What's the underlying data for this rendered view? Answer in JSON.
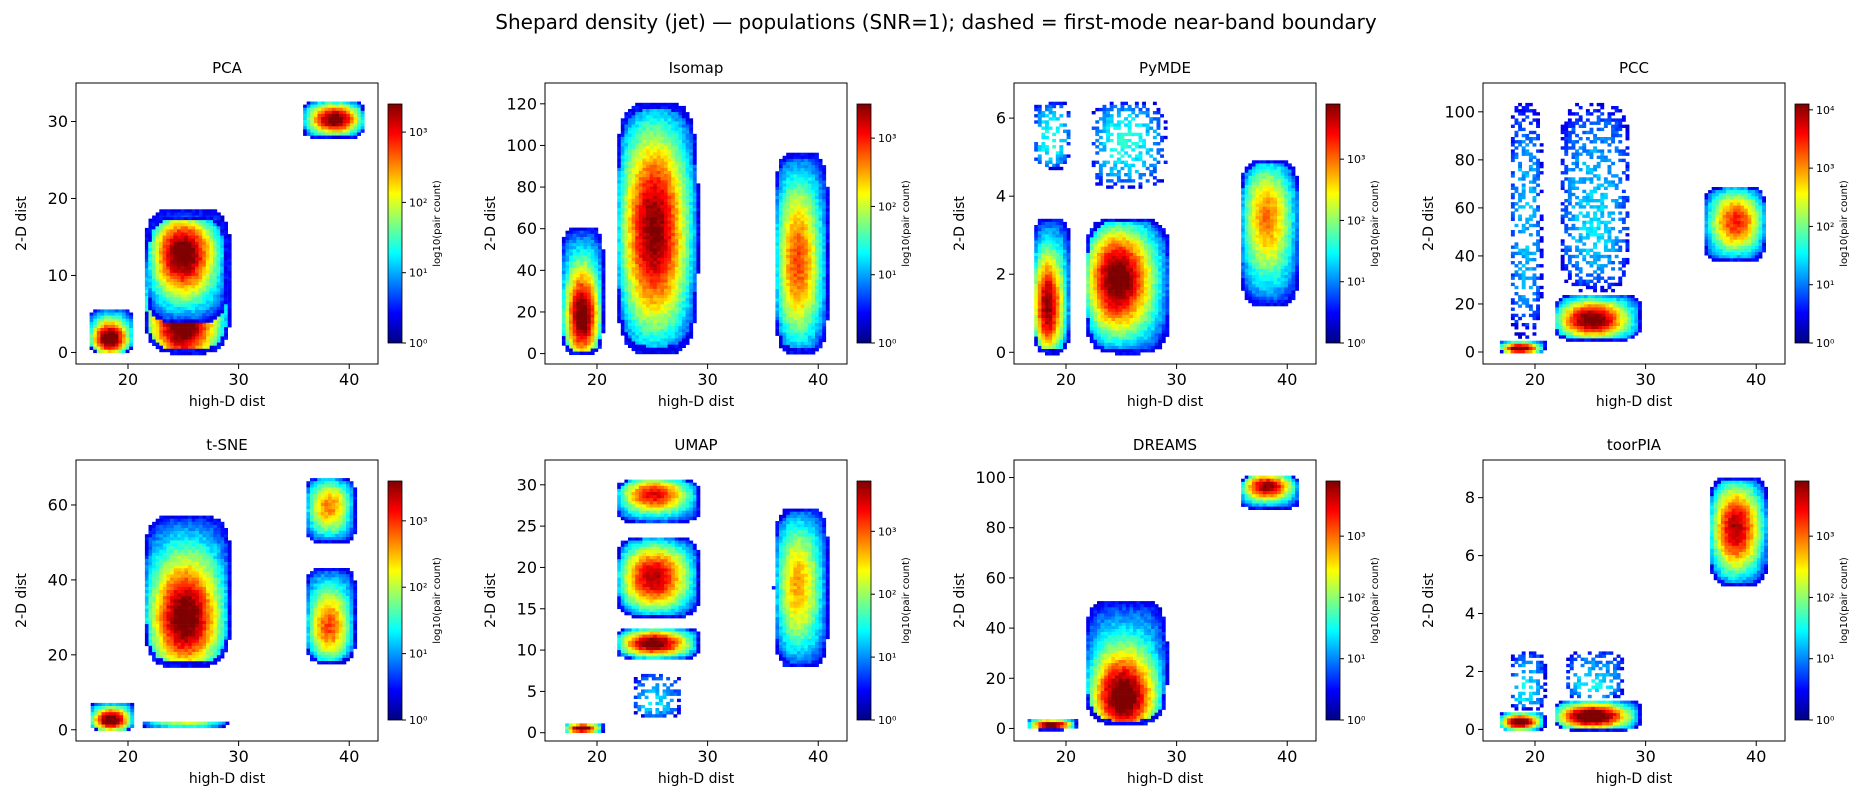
{
  "figure": {
    "title": "Shepard density (jet) — populations (SNR=1); dashed = first-mode near-band boundary"
  },
  "colors": {
    "jet": [
      "#00007f",
      "#0000ff",
      "#007fff",
      "#00ffff",
      "#7fff7f",
      "#ffff00",
      "#ff7f00",
      "#ff0000",
      "#7f0000"
    ]
  },
  "chart_data": [
    {
      "type": "heatmap",
      "title": "PCA",
      "xlabel": "high-D dist",
      "ylabel": "2-D dist",
      "xlim": [
        15.3,
        42.6
      ],
      "ylim": [
        -1.5,
        35
      ],
      "xticks": [
        20,
        30,
        40
      ],
      "yticks": [
        0,
        10,
        20,
        30
      ],
      "colorbar": {
        "label": "log10(pair count)",
        "ticks": [
          "10⁰",
          "10¹",
          "10²",
          "10³"
        ],
        "max_exp": 3.4
      },
      "clusters": [
        {
          "x": [
            16.2,
            20.4
          ],
          "y": [
            0,
            6
          ],
          "peak": [
            18.2,
            2
          ],
          "intensity": 0.85
        },
        {
          "x": [
            21.2,
            29.2
          ],
          "y": [
            0,
            19
          ],
          "peak": [
            24.8,
            4
          ],
          "intensity": 0.85
        },
        {
          "x": [
            21.5,
            28.8
          ],
          "y": [
            4,
            18
          ],
          "peak": [
            24.8,
            13
          ],
          "intensity": 0.8
        },
        {
          "x": [
            35.5,
            41.3
          ],
          "y": [
            28,
            33
          ],
          "peak": [
            38.5,
            30.5
          ],
          "intensity": 0.8
        }
      ]
    },
    {
      "type": "heatmap",
      "title": "Isomap",
      "xlabel": "high-D dist",
      "ylabel": "2-D dist",
      "xlim": [
        15.3,
        42.6
      ],
      "ylim": [
        -5,
        130
      ],
      "xticks": [
        20,
        30,
        40
      ],
      "yticks": [
        0,
        20,
        40,
        60,
        80,
        100,
        120
      ],
      "colorbar": {
        "label": "log10(pair count)",
        "ticks": [
          "10⁰",
          "10¹",
          "10²",
          "10³"
        ],
        "max_exp": 3.5
      },
      "clusters": [
        {
          "x": [
            16.5,
            20.5
          ],
          "y": [
            0,
            62
          ],
          "peak": [
            18.5,
            18
          ],
          "intensity": 0.8
        },
        {
          "x": [
            21.5,
            29.0
          ],
          "y": [
            0,
            122
          ],
          "peak": [
            25.0,
            60
          ],
          "intensity": 0.75
        },
        {
          "x": [
            35.8,
            40.8
          ],
          "y": [
            0,
            98
          ],
          "peak": [
            38.0,
            45
          ],
          "intensity": 0.55
        }
      ]
    },
    {
      "type": "heatmap",
      "title": "PyMDE",
      "xlabel": "high-D dist",
      "ylabel": "2-D dist",
      "xlim": [
        15.3,
        42.6
      ],
      "ylim": [
        -0.3,
        6.9
      ],
      "xticks": [
        20,
        30,
        40
      ],
      "yticks": [
        0,
        2,
        4,
        6
      ],
      "colorbar": {
        "label": "log10(pair count)",
        "ticks": [
          "10⁰",
          "10¹",
          "10²",
          "10³"
        ],
        "max_exp": 3.9
      },
      "clusters": [
        {
          "x": [
            16.8,
            20.3
          ],
          "y": [
            0,
            3.5
          ],
          "peak": [
            18.2,
            1.2
          ],
          "intensity": 0.75
        },
        {
          "x": [
            16.8,
            20.3
          ],
          "y": [
            4.7,
            6.5
          ],
          "peak": [
            18.5,
            5.5
          ],
          "intensity": 0.15
        },
        {
          "x": [
            21.5,
            29.3
          ],
          "y": [
            0,
            3.5
          ],
          "peak": [
            24.5,
            1.9
          ],
          "intensity": 0.8
        },
        {
          "x": [
            22.0,
            29.0
          ],
          "y": [
            4.2,
            6.5
          ],
          "peak": [
            25.0,
            5.5
          ],
          "intensity": 0.15
        },
        {
          "x": [
            35.5,
            41.0
          ],
          "y": [
            1.2,
            5.0
          ],
          "peak": [
            38.0,
            3.5
          ],
          "intensity": 0.5
        }
      ]
    },
    {
      "type": "heatmap",
      "title": "PCC",
      "xlabel": "high-D dist",
      "ylabel": "2-D dist",
      "xlim": [
        15.3,
        42.6
      ],
      "ylim": [
        -5,
        112
      ],
      "xticks": [
        20,
        30,
        40
      ],
      "yticks": [
        0,
        20,
        40,
        60,
        80,
        100
      ],
      "colorbar": {
        "label": "log10(pair count)",
        "ticks": [
          "10⁰",
          "10¹",
          "10²",
          "10³",
          "10⁴"
        ],
        "max_exp": 4.1
      },
      "clusters": [
        {
          "x": [
            16.5,
            20.8
          ],
          "y": [
            0,
            6
          ],
          "peak": [
            18.5,
            2
          ],
          "intensity": 0.85
        },
        {
          "x": [
            17.5,
            20.5
          ],
          "y": [
            6,
            105
          ],
          "peak": [
            19,
            50
          ],
          "intensity": 0.05
        },
        {
          "x": [
            21.5,
            29.5
          ],
          "y": [
            5,
            25
          ],
          "peak": [
            25,
            14
          ],
          "intensity": 0.8
        },
        {
          "x": [
            22.0,
            28.5
          ],
          "y": [
            25,
            105
          ],
          "peak": [
            25,
            50
          ],
          "intensity": 0.08
        },
        {
          "x": [
            35.0,
            40.8
          ],
          "y": [
            38,
            70
          ],
          "peak": [
            38,
            55
          ],
          "intensity": 0.6
        }
      ]
    },
    {
      "type": "heatmap",
      "title": "t-SNE",
      "xlabel": "high-D dist",
      "ylabel": "2-D dist",
      "xlim": [
        15.3,
        42.6
      ],
      "ylim": [
        -3,
        72
      ],
      "xticks": [
        20,
        30,
        40
      ],
      "yticks": [
        0,
        20,
        40,
        60
      ],
      "colorbar": {
        "label": "log10(pair count)",
        "ticks": [
          "10⁰",
          "10¹",
          "10²",
          "10³"
        ],
        "max_exp": 3.6
      },
      "clusters": [
        {
          "x": [
            16.3,
            20.5
          ],
          "y": [
            0,
            8
          ],
          "peak": [
            18.3,
            3
          ],
          "intensity": 0.85
        },
        {
          "x": [
            21.0,
            29.0
          ],
          "y": [
            1,
            3
          ],
          "peak": [
            25,
            2
          ],
          "intensity": 0.35
        },
        {
          "x": [
            21.2,
            29.2
          ],
          "y": [
            17,
            58
          ],
          "peak": [
            25,
            30
          ],
          "intensity": 0.8
        },
        {
          "x": [
            35.8,
            40.5
          ],
          "y": [
            18,
            44
          ],
          "peak": [
            38,
            28
          ],
          "intensity": 0.55
        },
        {
          "x": [
            35.8,
            40.5
          ],
          "y": [
            50,
            68
          ],
          "peak": [
            38,
            60
          ],
          "intensity": 0.5
        }
      ]
    },
    {
      "type": "heatmap",
      "title": "UMAP",
      "xlabel": "high-D dist",
      "ylabel": "2-D dist",
      "xlim": [
        15.3,
        42.6
      ],
      "ylim": [
        -1,
        33
      ],
      "xticks": [
        20,
        30,
        40
      ],
      "yticks": [
        0,
        5,
        10,
        15,
        20,
        25,
        30
      ],
      "colorbar": {
        "label": "log10(pair count)",
        "ticks": [
          "10⁰",
          "10¹",
          "10²",
          "10³"
        ],
        "max_exp": 3.8
      },
      "clusters": [
        {
          "x": [
            16.8,
            20.5
          ],
          "y": [
            0,
            1.5
          ],
          "peak": [
            18.5,
            0.7
          ],
          "intensity": 0.85
        },
        {
          "x": [
            21.5,
            29.2
          ],
          "y": [
            9,
            13
          ],
          "peak": [
            25,
            11
          ],
          "intensity": 0.8
        },
        {
          "x": [
            21.5,
            29.2
          ],
          "y": [
            14,
            24
          ],
          "peak": [
            25,
            19
          ],
          "intensity": 0.7
        },
        {
          "x": [
            21.5,
            29.2
          ],
          "y": [
            25.5,
            31
          ],
          "peak": [
            25,
            29
          ],
          "intensity": 0.65
        },
        {
          "x": [
            23.0,
            27.5
          ],
          "y": [
            2,
            7.5
          ],
          "peak": [
            25,
            3
          ],
          "intensity": 0.1
        },
        {
          "x": [
            35.8,
            40.8
          ],
          "y": [
            8,
            27.5
          ],
          "peak": [
            38,
            18
          ],
          "intensity": 0.45
        }
      ]
    },
    {
      "type": "heatmap",
      "title": "DREAMS",
      "xlabel": "high-D dist",
      "ylabel": "2-D dist",
      "xlim": [
        15.3,
        42.6
      ],
      "ylim": [
        -5,
        107
      ],
      "xticks": [
        20,
        30,
        40
      ],
      "yticks": [
        0,
        20,
        40,
        60,
        80,
        100
      ],
      "colorbar": {
        "label": "log10(pair count)",
        "ticks": [
          "10⁰",
          "10¹",
          "10²",
          "10³"
        ],
        "max_exp": 3.9
      },
      "clusters": [
        {
          "x": [
            16.2,
            20.8
          ],
          "y": [
            0,
            5
          ],
          "peak": [
            18.5,
            2
          ],
          "intensity": 0.85
        },
        {
          "x": [
            21.5,
            29.0
          ],
          "y": [
            2,
            52
          ],
          "peak": [
            25,
            12
          ],
          "intensity": 0.85
        },
        {
          "x": [
            35.5,
            41.0
          ],
          "y": [
            88,
            102
          ],
          "peak": [
            38,
            97
          ],
          "intensity": 0.75
        }
      ]
    },
    {
      "type": "heatmap",
      "title": "toorPIA",
      "xlabel": "high-D dist",
      "ylabel": "2-D dist",
      "xlim": [
        15.3,
        42.6
      ],
      "ylim": [
        -0.4,
        9.3
      ],
      "xticks": [
        20,
        30,
        40
      ],
      "yticks": [
        0,
        2,
        4,
        6,
        8
      ],
      "colorbar": {
        "label": "log10(pair count)",
        "ticks": [
          "10⁰",
          "10¹",
          "10²",
          "10³"
        ],
        "max_exp": 3.9
      },
      "clusters": [
        {
          "x": [
            16.5,
            20.8
          ],
          "y": [
            0,
            0.7
          ],
          "peak": [
            18.5,
            0.3
          ],
          "intensity": 0.85
        },
        {
          "x": [
            17.5,
            20.8
          ],
          "y": [
            0.7,
            2.8
          ],
          "peak": [
            19,
            1.2
          ],
          "intensity": 0.12
        },
        {
          "x": [
            21.5,
            29.5
          ],
          "y": [
            0,
            1.1
          ],
          "peak": [
            25,
            0.5
          ],
          "intensity": 0.9
        },
        {
          "x": [
            22.5,
            28.0
          ],
          "y": [
            1.1,
            2.8
          ],
          "peak": [
            25,
            1.3
          ],
          "intensity": 0.15
        },
        {
          "x": [
            35.5,
            41.0
          ],
          "y": [
            5,
            8.8
          ],
          "peak": [
            38,
            7
          ],
          "intensity": 0.7
        }
      ]
    }
  ]
}
